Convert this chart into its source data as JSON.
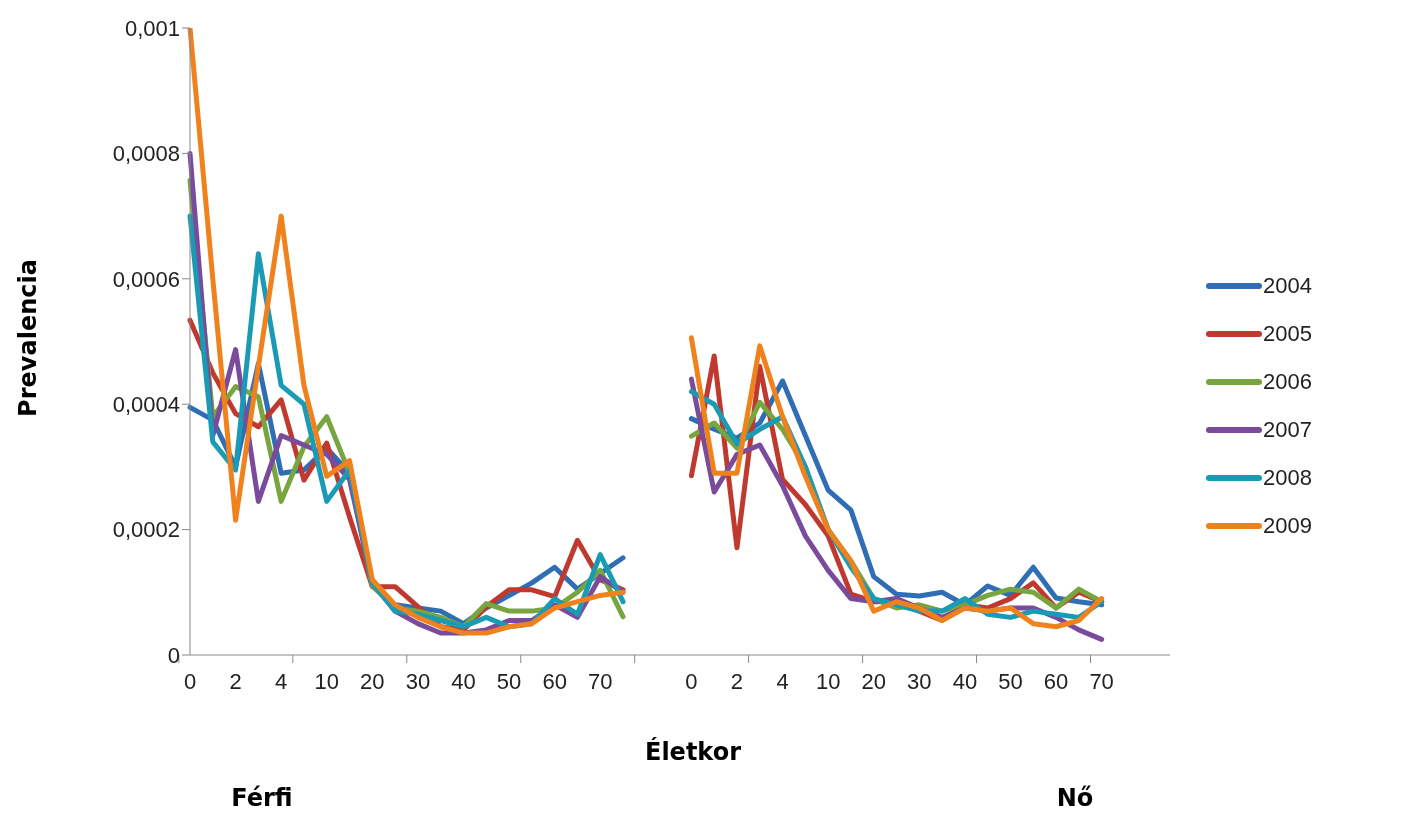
{
  "chart_data": {
    "type": "line",
    "ylabel": "Prevalencia",
    "xlabel": "Életkor",
    "annotations": [
      "Férfi",
      "Nő"
    ],
    "categories": [
      "0",
      null,
      "2",
      null,
      "4",
      null,
      "10",
      null,
      "20",
      null,
      "30",
      null,
      "40",
      null,
      "50",
      null,
      "60",
      null,
      "70",
      null,
      null,
      null,
      "0",
      null,
      "2",
      null,
      "4",
      null,
      "10",
      null,
      "20",
      null,
      "30",
      null,
      "40",
      null,
      "50",
      null,
      "60",
      null,
      "70",
      null,
      null,
      null
    ],
    "ylim": [
      0,
      0.001
    ],
    "yticks": [
      {
        "value": 0,
        "label": "0"
      },
      {
        "value": 0.0002,
        "label": "0,0002"
      },
      {
        "value": 0.0004,
        "label": "0,0004"
      },
      {
        "value": 0.0006,
        "label": "0,0006"
      },
      {
        "value": 0.0008,
        "label": "0,0008"
      },
      {
        "value": 0.001,
        "label": "0,001"
      }
    ],
    "grid": false,
    "legend": "right",
    "series": [
      {
        "name": "2004",
        "color": "#2f6db5",
        "values": [
          0.000395,
          0.000375,
          0.0003,
          0.000465,
          0.00029,
          0.000295,
          0.00033,
          0.00029,
          0.00011,
          8e-05,
          7.5e-05,
          7e-05,
          5e-05,
          7.5e-05,
          9.5e-05,
          0.000115,
          0.00014,
          0.000105,
          0.00013,
          0.000155,
          null,
          null,
          0.000377,
          0.00036,
          0.000346,
          0.00037,
          0.000437,
          0.00035,
          0.000263,
          0.000231,
          0.000125,
          9.7e-05,
          9.4e-05,
          0.0001,
          8e-05,
          0.00011,
          9.5e-05,
          0.00014,
          9.1e-05,
          8.5e-05,
          8e-05,
          null,
          null,
          null
        ]
      },
      {
        "name": "2005",
        "color": "#c0392f",
        "values": [
          0.000534,
          0.00045,
          0.000385,
          0.000364,
          0.000407,
          0.000279,
          0.000338,
          0.00022,
          0.000109,
          0.000109,
          7.7e-05,
          4.5e-05,
          4e-05,
          7.7e-05,
          0.000104,
          0.000104,
          9.3e-05,
          0.000183,
          0.00012,
          0.000104,
          null,
          null,
          0.000286,
          0.000477,
          0.000171,
          0.00046,
          0.00028,
          0.00024,
          0.00019,
          9.7e-05,
          8.5e-05,
          8.5e-05,
          7e-05,
          5.5e-05,
          8e-05,
          7.5e-05,
          9e-05,
          0.000115,
          7.5e-05,
          0.0001,
          8.5e-05,
          null,
          null,
          null
        ]
      },
      {
        "name": "2006",
        "color": "#77a540",
        "values": [
          0.000757,
          0.00038,
          0.000428,
          0.000412,
          0.000245,
          0.000332,
          0.00038,
          0.00029,
          0.00011,
          7.5e-05,
          7e-05,
          6e-05,
          4.5e-05,
          8.2e-05,
          7e-05,
          7e-05,
          7.5e-05,
          0.0001,
          0.000135,
          6.1e-05,
          null,
          null,
          0.000349,
          0.00037,
          0.00033,
          0.000403,
          0.00036,
          0.0003,
          0.0002,
          0.00015,
          9e-05,
          7.5e-05,
          8e-05,
          7e-05,
          8e-05,
          9.5e-05,
          0.000105,
          0.0001,
          7.5e-05,
          0.000105,
          8.5e-05,
          null,
          null,
          null
        ]
      },
      {
        "name": "2007",
        "color": "#7a4b9c",
        "values": [
          0.0008,
          0.00035,
          0.000487,
          0.000245,
          0.00035,
          0.000335,
          0.00032,
          0.00028,
          0.000115,
          7e-05,
          5e-05,
          3.5e-05,
          3.5e-05,
          4e-05,
          5.5e-05,
          5.5e-05,
          8e-05,
          6e-05,
          0.000125,
          0.0001,
          null,
          null,
          0.00044,
          0.00026,
          0.00032,
          0.000335,
          0.00027,
          0.00019,
          0.000135,
          9e-05,
          8.5e-05,
          9e-05,
          7.5e-05,
          6e-05,
          7.5e-05,
          7e-05,
          7.5e-05,
          7.5e-05,
          6e-05,
          4e-05,
          2.5e-05,
          null,
          null,
          null
        ]
      },
      {
        "name": "2008",
        "color": "#1a9bb5",
        "values": [
          0.0007,
          0.00034,
          0.000295,
          0.00064,
          0.00043,
          0.0004,
          0.000245,
          0.000295,
          0.000115,
          7e-05,
          6.5e-05,
          5.5e-05,
          4.5e-05,
          6e-05,
          4.5e-05,
          5e-05,
          9e-05,
          6.5e-05,
          0.00016,
          8.5e-05,
          null,
          null,
          0.00042,
          0.0004,
          0.000337,
          0.00036,
          0.00038,
          0.0003,
          0.0002,
          0.00014,
          9e-05,
          8e-05,
          7e-05,
          7e-05,
          9e-05,
          6.5e-05,
          6e-05,
          7e-05,
          6.5e-05,
          6e-05,
          8.5e-05,
          null,
          null,
          null
        ]
      },
      {
        "name": "2009",
        "color": "#f0821e",
        "values": [
          0.001,
          0.0006,
          0.000215,
          0.00046,
          0.0007,
          0.00043,
          0.000285,
          0.00031,
          0.00012,
          8e-05,
          6e-05,
          4.5e-05,
          3.5e-05,
          3.5e-05,
          4.5e-05,
          5e-05,
          7.5e-05,
          8.5e-05,
          9.5e-05,
          0.0001,
          null,
          null,
          0.000506,
          0.00029,
          0.00029,
          0.000493,
          0.00038,
          0.000285,
          0.0002,
          0.00015,
          7e-05,
          8.5e-05,
          7.5e-05,
          5.5e-05,
          7.5e-05,
          7e-05,
          7.5e-05,
          5e-05,
          4.5e-05,
          5.5e-05,
          9e-05,
          null,
          null,
          null
        ]
      }
    ]
  }
}
